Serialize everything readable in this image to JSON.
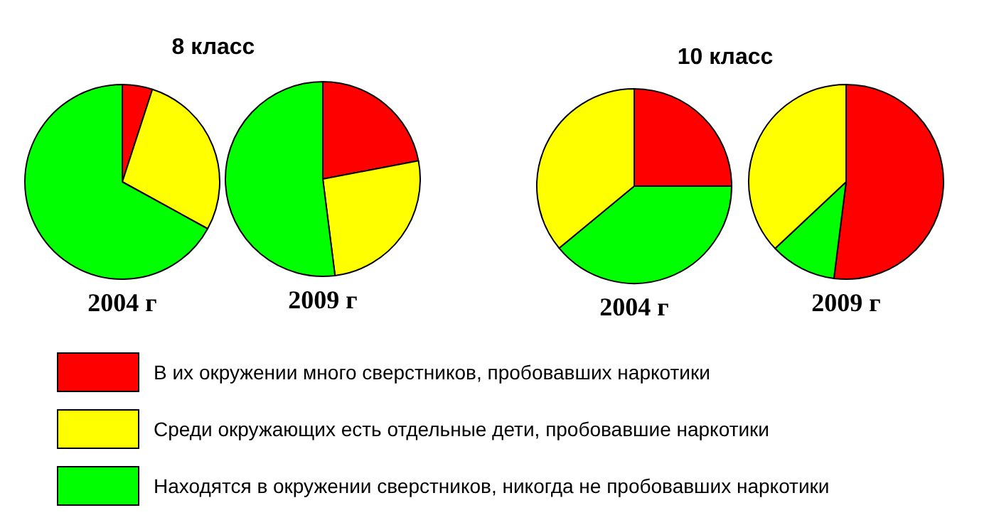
{
  "chart_data": [
    {
      "type": "pie",
      "title": "2004 г",
      "annotations": [
        "8 класс"
      ],
      "legend": "bottom",
      "categories": [
        "В их окружении много сверстников, пробовавших наркотики",
        "Среди окружающих есть отдельные дети, пробовавшие наркотики",
        "Находятся в окружении сверстников, никогда не пробовавших наркотики"
      ],
      "values": [
        5,
        28,
        67
      ],
      "colors": [
        "#ff0000",
        "#ffff00",
        "#00ff00"
      ]
    },
    {
      "type": "pie",
      "title": "2009 г",
      "categories": [
        null,
        null,
        null
      ],
      "values": [
        22,
        26,
        52
      ],
      "colors": [
        "#ff0000",
        "#ffff00",
        "#00ff00"
      ]
    },
    {
      "type": "pie",
      "title": "2004 г",
      "annotations": [
        "10 класс"
      ],
      "categories": [
        null,
        null,
        null
      ],
      "values": [
        25,
        39,
        36
      ],
      "colors": [
        "#ff0000",
        "#00ff00",
        "#ffff00"
      ]
    },
    {
      "type": "pie",
      "title": "2009 г",
      "categories": [
        null,
        null,
        null
      ],
      "values": [
        52,
        11,
        37
      ],
      "colors": [
        "#ff0000",
        "#00ff00",
        "#ffff00"
      ]
    }
  ]
}
